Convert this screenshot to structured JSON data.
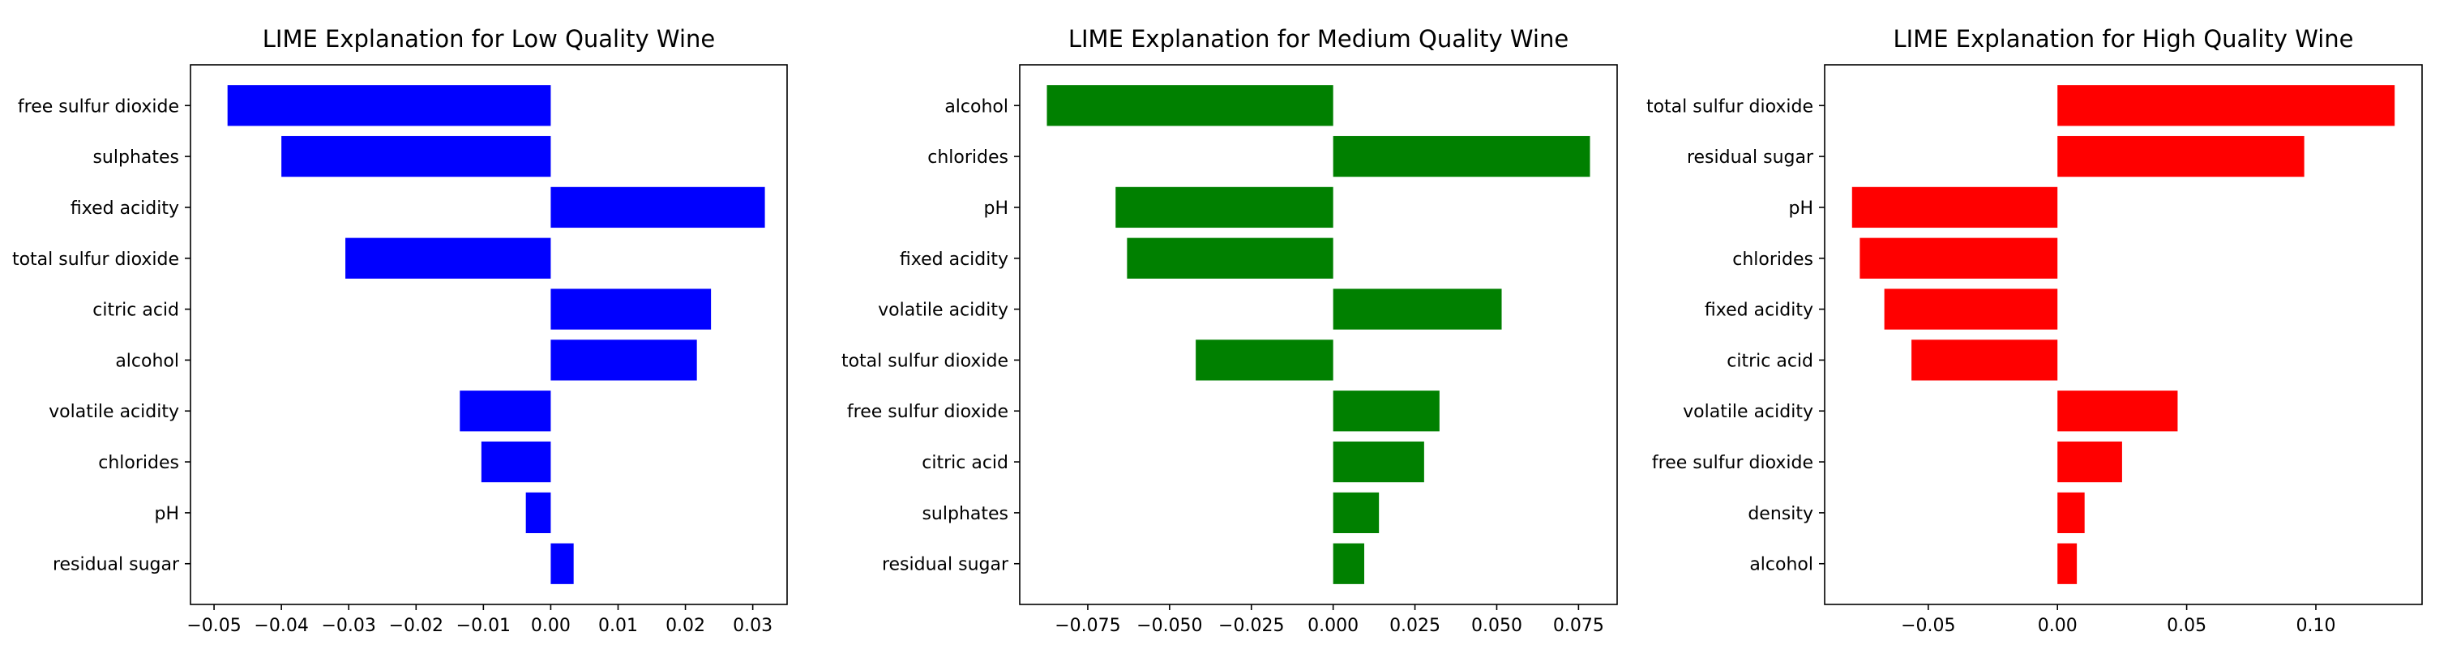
{
  "chart_data": [
    {
      "type": "bar",
      "orientation": "horizontal",
      "title": "LIME Explanation for Low Quality Wine",
      "color": "#0000ff",
      "categories": [
        "free sulfur dioxide",
        "sulphates",
        "fixed acidity",
        "total sulfur dioxide",
        "citric acid",
        "alcohol",
        "volatile acidity",
        "chlorides",
        "pH",
        "residual sugar"
      ],
      "values": [
        -0.048,
        -0.04,
        0.0318,
        -0.0305,
        0.0238,
        0.0217,
        -0.0135,
        -0.0103,
        -0.0037,
        0.0034
      ],
      "xlim": [
        -0.0535,
        0.0351
      ],
      "xticks": [
        -0.05,
        -0.04,
        -0.03,
        -0.02,
        -0.01,
        0.0,
        0.01,
        0.02,
        0.03
      ],
      "xtick_labels": [
        "−0.05",
        "−0.04",
        "−0.03",
        "−0.02",
        "−0.01",
        "0.00",
        "0.01",
        "0.02",
        "0.03"
      ],
      "xlabel": "",
      "ylabel": "",
      "grid": false
    },
    {
      "type": "bar",
      "orientation": "horizontal",
      "title": "LIME Explanation for Medium Quality Wine",
      "color": "#008000",
      "categories": [
        "alcohol",
        "chlorides",
        "pH",
        "fixed acidity",
        "volatile acidity",
        "total sulfur dioxide",
        "free sulfur dioxide",
        "citric acid",
        "sulphates",
        "residual sugar"
      ],
      "values": [
        -0.0875,
        0.0785,
        -0.0665,
        -0.063,
        0.0515,
        -0.042,
        0.0325,
        0.0278,
        0.014,
        0.0095
      ],
      "xlim": [
        -0.0958,
        0.0868
      ],
      "xticks": [
        -0.075,
        -0.05,
        -0.025,
        0.0,
        0.025,
        0.05,
        0.075
      ],
      "xtick_labels": [
        "−0.075",
        "−0.050",
        "−0.025",
        "0.000",
        "0.025",
        "0.050",
        "0.075"
      ],
      "xlabel": "",
      "ylabel": "",
      "grid": false
    },
    {
      "type": "bar",
      "orientation": "horizontal",
      "title": "LIME Explanation for High Quality Wine",
      "color": "#ff0000",
      "categories": [
        "total sulfur dioxide",
        "residual sugar",
        "pH",
        "chlorides",
        "fixed acidity",
        "citric acid",
        "volatile acidity",
        "free sulfur dioxide",
        "density",
        "alcohol"
      ],
      "values": [
        0.1305,
        0.0955,
        -0.0795,
        -0.0765,
        -0.067,
        -0.0565,
        0.0465,
        0.025,
        0.0105,
        0.0075
      ],
      "xlim": [
        -0.0901,
        0.1411
      ],
      "xticks": [
        -0.05,
        0.0,
        0.05,
        0.1
      ],
      "xtick_labels": [
        "−0.05",
        "0.00",
        "0.05",
        "0.10"
      ],
      "xlabel": "",
      "ylabel": "",
      "grid": false
    }
  ]
}
